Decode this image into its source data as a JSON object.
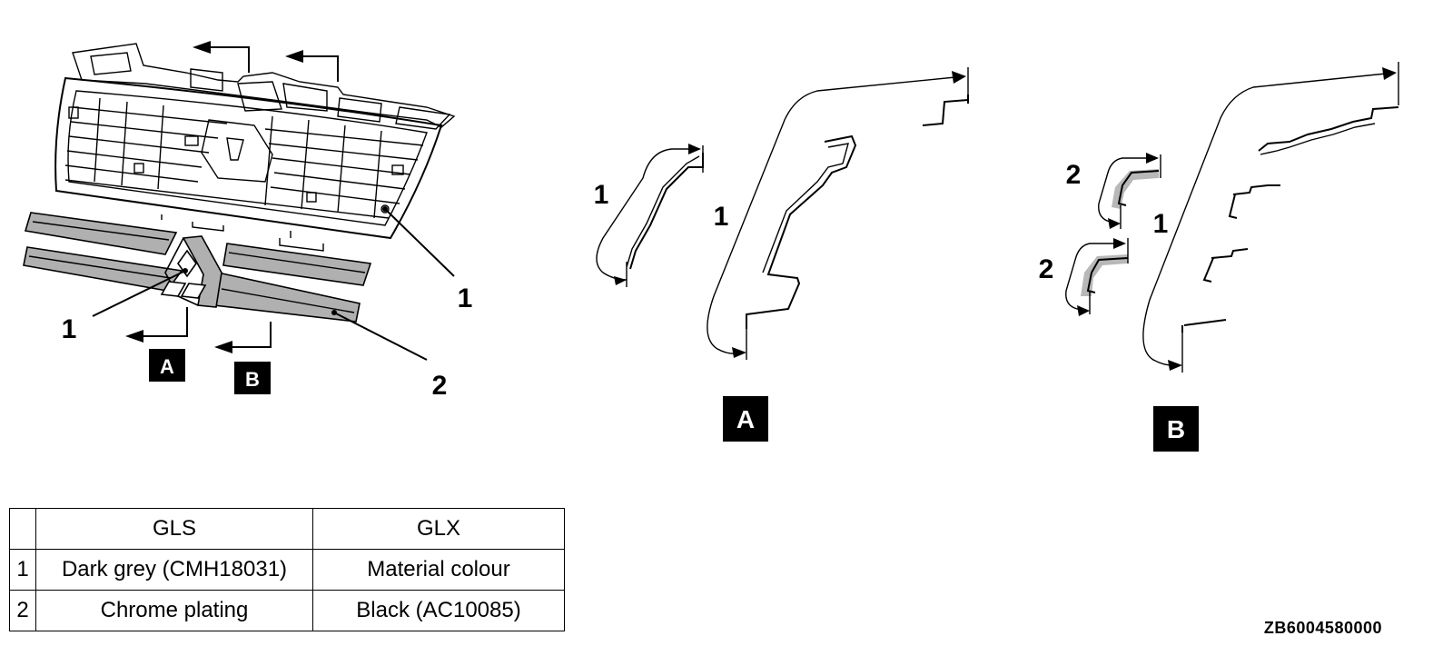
{
  "callouts": {
    "grille_1_right": "1",
    "grille_1_left": "1",
    "grille_2": "2",
    "view_a_1_left": "1",
    "view_a_1_right": "1",
    "view_b_2_top": "2",
    "view_b_2_bottom": "2",
    "view_b_1": "1"
  },
  "view_labels": {
    "arrow_a": "A",
    "arrow_b": "B",
    "section_a": "A",
    "section_b": "B"
  },
  "table": {
    "headers": [
      "",
      "GLS",
      "GLX"
    ],
    "rows": [
      [
        "1",
        "Dark grey (CMH18031)",
        "Material colour"
      ],
      [
        "2",
        "Chrome plating",
        "Black (AC10085)"
      ]
    ]
  },
  "reference_code": "ZB6004580000",
  "colors": {
    "line": "#000000",
    "highlight": "#b0b0b0",
    "background": "#ffffff"
  }
}
